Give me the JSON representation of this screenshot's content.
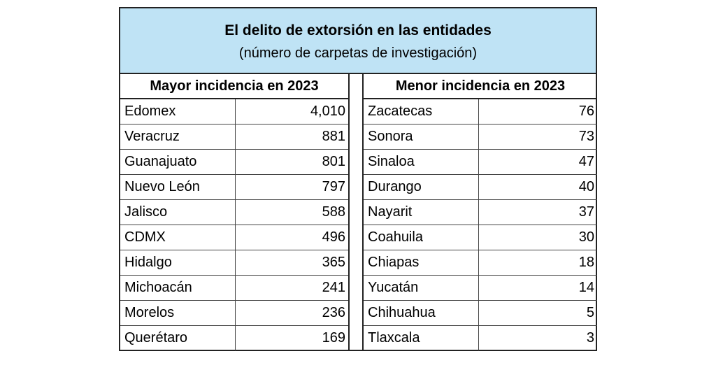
{
  "header": {
    "title": "El delito de extorsión en las entidades",
    "subtitle": "(número de carpetas de investigación)"
  },
  "left": {
    "heading": "Mayor incidencia en 2023",
    "rows": [
      {
        "name": "Edomex",
        "value": "4,010"
      },
      {
        "name": "Veracruz",
        "value": "881"
      },
      {
        "name": "Guanajuato",
        "value": "801"
      },
      {
        "name": "Nuevo León",
        "value": "797"
      },
      {
        "name": "Jalisco",
        "value": "588"
      },
      {
        "name": "CDMX",
        "value": "496"
      },
      {
        "name": "Hidalgo",
        "value": "365"
      },
      {
        "name": "Michoacán",
        "value": "241"
      },
      {
        "name": "Morelos",
        "value": "236"
      },
      {
        "name": "Querétaro",
        "value": "169"
      }
    ]
  },
  "right": {
    "heading": "Menor incidencia en 2023",
    "rows": [
      {
        "name": "Zacatecas",
        "value": "76"
      },
      {
        "name": "Sonora",
        "value": "73"
      },
      {
        "name": "Sinaloa",
        "value": "47"
      },
      {
        "name": "Durango",
        "value": "40"
      },
      {
        "name": "Nayarit",
        "value": "37"
      },
      {
        "name": "Coahuila",
        "value": "30"
      },
      {
        "name": "Chiapas",
        "value": "18"
      },
      {
        "name": "Yucatán",
        "value": "14"
      },
      {
        "name": "Chihuahua",
        "value": "5"
      },
      {
        "name": "Tlaxcala",
        "value": "3"
      }
    ]
  },
  "colors": {
    "header_bg": "#bfe3f5",
    "border": "#222222"
  }
}
